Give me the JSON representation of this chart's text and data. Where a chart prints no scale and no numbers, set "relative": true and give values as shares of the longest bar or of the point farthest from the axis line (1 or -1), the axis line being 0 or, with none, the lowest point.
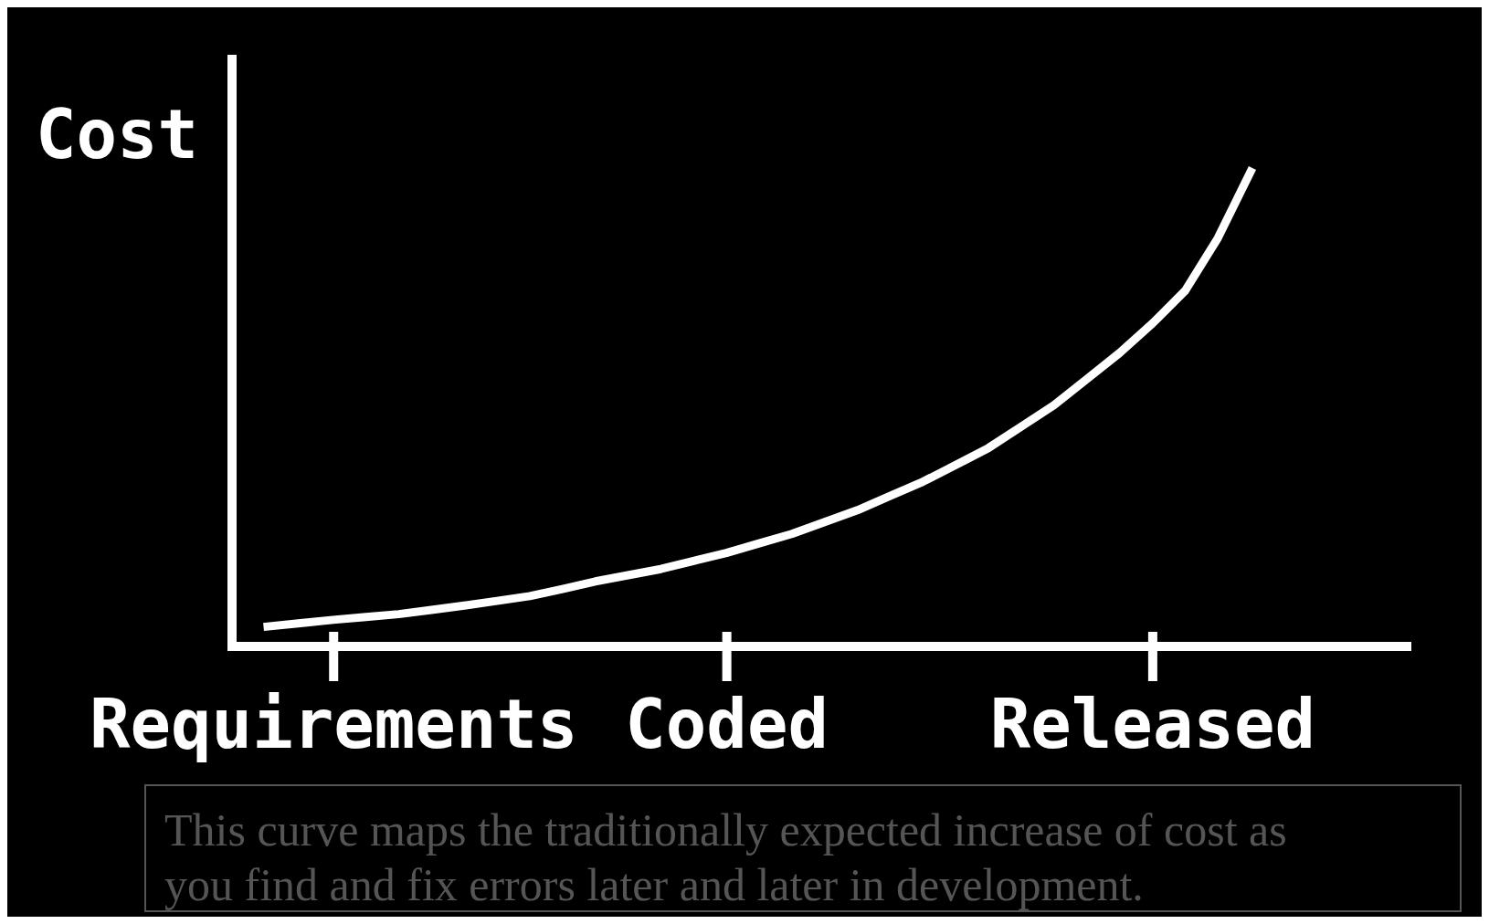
{
  "chart_data": {
    "type": "line",
    "relative": true,
    "ylabel": "Cost",
    "categories": [
      null,
      null,
      "Requirements",
      null,
      null,
      null,
      null,
      null,
      null,
      null,
      null,
      null,
      null,
      null,
      "Coded",
      null,
      null,
      null,
      null,
      null,
      null,
      null,
      null,
      null,
      null,
      null,
      null,
      "Released",
      null,
      null,
      null
    ],
    "series": [
      {
        "color": "#ffffff",
        "values": [
          0.042,
          0.049,
          0.056,
          0.062,
          0.068,
          0.077,
          0.086,
          0.096,
          0.106,
          0.121,
          0.137,
          0.15,
          0.163,
          0.18,
          0.197,
          0.217,
          0.237,
          0.262,
          0.287,
          0.317,
          0.347,
          0.382,
          0.418,
          0.463,
          0.508,
          0.563,
          0.618,
          0.68,
          0.749,
          0.86,
          1
        ]
      }
    ],
    "annotations": [
      "This curve maps the traditionally expected increase of cost as you find and fix errors later and later in development."
    ]
  }
}
